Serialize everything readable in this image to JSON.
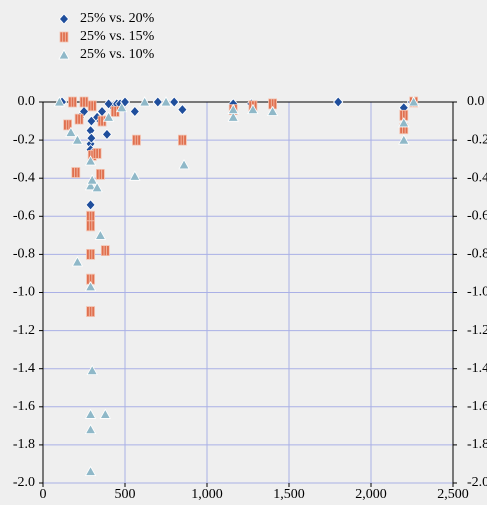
{
  "chart_data": {
    "type": "scatter",
    "series": [
      {
        "name": "25% vs. 20%",
        "color": "#1f4e9c",
        "marker": "diamond",
        "x": [
          116,
          226,
          250,
          290,
          290,
          295,
          290,
          295,
          290,
          300,
          330,
          350,
          360,
          390,
          420,
          450,
          470,
          560,
          850,
          1160,
          1270,
          1400,
          1800,
          2200,
          2250,
          500,
          700,
          800,
          400
        ],
        "values": [
          0,
          -0.08,
          -0.05,
          -0.22,
          -0.25,
          -0.1,
          -0.15,
          -0.19,
          -0.54,
          -0.27,
          -0.08,
          -0.1,
          -0.05,
          -0.17,
          -0.02,
          -0.01,
          -0.01,
          -0.05,
          -0.04,
          -0.01,
          -0.01,
          -0.01,
          0,
          -0.03,
          0,
          0,
          0,
          0,
          -0.01
        ]
      },
      {
        "name": "25% vs. 15%",
        "color": "#e0704f",
        "marker": "square",
        "x": [
          150,
          200,
          220,
          290,
          290,
          290,
          290,
          290,
          300,
          330,
          350,
          380,
          360,
          440,
          570,
          850,
          1160,
          1280,
          1400,
          2200,
          2200,
          2260,
          300,
          250,
          180
        ],
        "values": [
          -0.12,
          -0.37,
          -0.09,
          -1.1,
          -0.93,
          -0.8,
          -0.6,
          -0.65,
          -0.28,
          -0.27,
          -0.38,
          -0.78,
          -0.1,
          -0.05,
          -0.2,
          -0.2,
          -0.04,
          -0.02,
          -0.01,
          -0.14,
          -0.07,
          0,
          -0.02,
          0,
          0
        ]
      },
      {
        "name": "25% vs. 10%",
        "color": "#8fb8c8",
        "marker": "triangle",
        "x": [
          210,
          290,
          290,
          290,
          300,
          380,
          290,
          290,
          300,
          330,
          350,
          290,
          170,
          210,
          560,
          860,
          1160,
          1160,
          1280,
          1400,
          2200,
          2200,
          2260,
          100,
          400,
          480,
          620,
          750
        ],
        "values": [
          -0.84,
          -1.94,
          -1.72,
          -1.64,
          -1.41,
          -1.64,
          -0.97,
          -0.44,
          -0.41,
          -0.45,
          -0.7,
          -0.31,
          -0.16,
          -0.2,
          -0.39,
          -0.33,
          -0.08,
          -0.04,
          -0.04,
          -0.05,
          -0.2,
          -0.11,
          0,
          0,
          -0.08,
          -0.03,
          0,
          0
        ]
      }
    ],
    "xlim": [
      0,
      2500
    ],
    "xticks": [
      0,
      500,
      {
        "value": 1000,
        "label": "1,000"
      },
      {
        "value": 1500,
        "label": "1,500"
      },
      {
        "value": 2000,
        "label": "2,000"
      },
      {
        "value": 2500,
        "label": "2,500"
      }
    ],
    "ylim": [
      -2.0,
      0.0
    ],
    "yticks": [
      {
        "value": 0,
        "label": "0.0"
      },
      {
        "value": -0.2,
        "label": "-0.2"
      },
      {
        "value": -0.4,
        "label": "-0.4"
      },
      {
        "value": -0.6,
        "label": "-0.6"
      },
      {
        "value": -0.8,
        "label": "-0.8"
      },
      {
        "value": -1.0,
        "label": "-1.0"
      },
      {
        "value": -1.2,
        "label": "-1.2"
      },
      {
        "value": -1.4,
        "label": "-1.4"
      },
      {
        "value": -1.6,
        "label": "-1.6"
      },
      {
        "value": -1.8,
        "label": "-1.8"
      },
      {
        "value": -2.0,
        "label": "-2.0"
      }
    ],
    "y2lim": [
      -2.0,
      0.0
    ],
    "y2ticks": [
      {
        "value": 0,
        "label": "0.0"
      },
      {
        "value": -0.2,
        "label": "-0.2"
      },
      {
        "value": -0.4,
        "label": "-0.4"
      },
      {
        "value": -0.6,
        "label": "-0.6"
      },
      {
        "value": -0.8,
        "label": "-0.8"
      },
      {
        "value": -1.0,
        "label": "-1.0"
      },
      {
        "value": -1.2,
        "label": "-1.2"
      },
      {
        "value": -1.4,
        "label": "-1.4"
      },
      {
        "value": -1.6,
        "label": "-1.6"
      },
      {
        "value": -1.8,
        "label": "-1.8"
      },
      {
        "value": -2.0,
        "label": "-2.0"
      }
    ],
    "grid": true,
    "legend": "top-left"
  }
}
